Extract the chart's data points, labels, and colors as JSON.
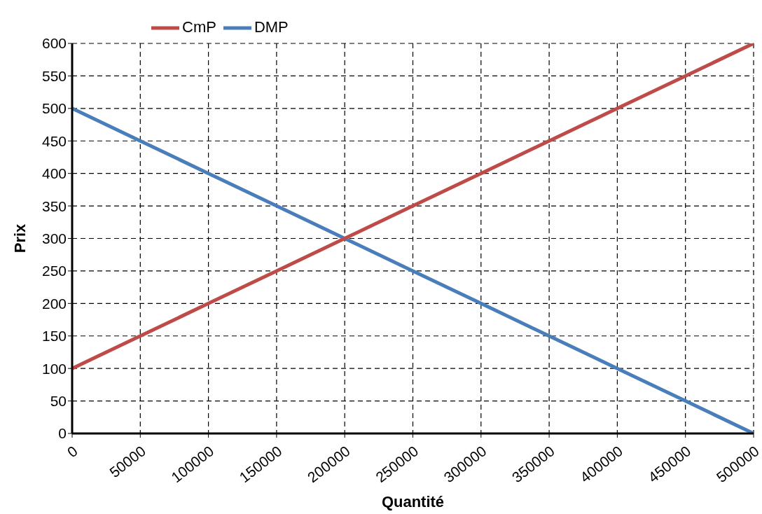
{
  "chart_data": {
    "type": "line",
    "xlabel": "Quantité",
    "ylabel": "Prix",
    "x": [
      0,
      50000,
      100000,
      150000,
      200000,
      250000,
      300000,
      350000,
      400000,
      450000,
      500000
    ],
    "series": [
      {
        "name": "DMP",
        "color": "#4a7ebb",
        "values": [
          500,
          450,
          400,
          350,
          300,
          250,
          200,
          150,
          100,
          50,
          0
        ]
      },
      {
        "name": "CmP",
        "color": "#be4b48",
        "values": [
          100,
          150,
          200,
          250,
          300,
          350,
          400,
          450,
          500,
          550,
          600
        ]
      }
    ],
    "xlim": [
      0,
      500000
    ],
    "xticks": [
      0,
      50000,
      100000,
      150000,
      200000,
      250000,
      300000,
      350000,
      400000,
      450000,
      500000
    ],
    "ylim": [
      0,
      600
    ],
    "yticks": [
      0,
      50,
      100,
      150,
      200,
      250,
      300,
      350,
      400,
      450,
      500,
      550,
      600
    ],
    "grid": true,
    "legend": "top left",
    "marker": "none",
    "line_style": "solid"
  }
}
